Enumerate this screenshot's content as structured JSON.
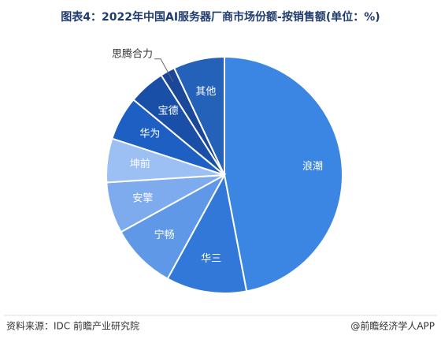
{
  "chart_data": {
    "type": "pie",
    "title": "图表4：2022年中国AI服务器厂商市场份额-按销售额(单位：%)",
    "categories": [
      "浪潮",
      "华三",
      "宁畅",
      "安擎",
      "坤前",
      "华为",
      "宝德",
      "思腾合力",
      "其他"
    ],
    "values": [
      47,
      11,
      9,
      7,
      6,
      6,
      5,
      2,
      7
    ],
    "colors": [
      "#3a86e2",
      "#3278d9",
      "#5e98e6",
      "#7eaaee",
      "#9dc0f4",
      "#1e5fc4",
      "#1a4fa8",
      "#1b479a",
      "#2462b9"
    ],
    "source": "资料来源：IDC 前瞻产业研究院",
    "credit": "@前瞻经济学人APP"
  }
}
